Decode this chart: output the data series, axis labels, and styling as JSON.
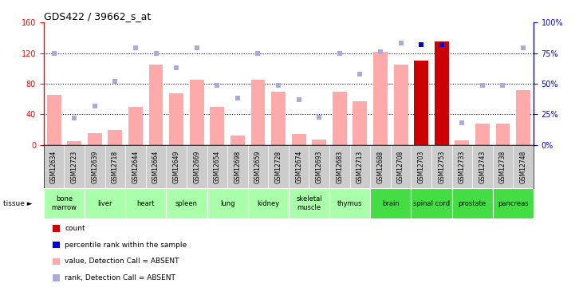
{
  "title": "GDS422 / 39662_s_at",
  "samples": [
    "GSM12634",
    "GSM12723",
    "GSM12639",
    "GSM12718",
    "GSM12644",
    "GSM12664",
    "GSM12649",
    "GSM12669",
    "GSM12654",
    "GSM12698",
    "GSM12659",
    "GSM12728",
    "GSM12674",
    "GSM12693",
    "GSM12683",
    "GSM12713",
    "GSM12688",
    "GSM12708",
    "GSM12703",
    "GSM12753",
    "GSM12733",
    "GSM12743",
    "GSM12738",
    "GSM12748"
  ],
  "tissues": [
    {
      "label": "bone\nmarrow",
      "samples": [
        "GSM12634",
        "GSM12723"
      ],
      "dark": false
    },
    {
      "label": "liver",
      "samples": [
        "GSM12639",
        "GSM12718"
      ],
      "dark": false
    },
    {
      "label": "heart",
      "samples": [
        "GSM12644",
        "GSM12664"
      ],
      "dark": false
    },
    {
      "label": "spleen",
      "samples": [
        "GSM12649",
        "GSM12669"
      ],
      "dark": false
    },
    {
      "label": "lung",
      "samples": [
        "GSM12654",
        "GSM12698"
      ],
      "dark": false
    },
    {
      "label": "kidney",
      "samples": [
        "GSM12659",
        "GSM12728"
      ],
      "dark": false
    },
    {
      "label": "skeletal\nmuscle",
      "samples": [
        "GSM12674",
        "GSM12693"
      ],
      "dark": false
    },
    {
      "label": "thymus",
      "samples": [
        "GSM12683",
        "GSM12713"
      ],
      "dark": false
    },
    {
      "label": "brain",
      "samples": [
        "GSM12688",
        "GSM12708"
      ],
      "dark": true
    },
    {
      "label": "spinal cord",
      "samples": [
        "GSM12703",
        "GSM12753"
      ],
      "dark": true
    },
    {
      "label": "prostate",
      "samples": [
        "GSM12733",
        "GSM12743"
      ],
      "dark": true
    },
    {
      "label": "pancreas",
      "samples": [
        "GSM12738",
        "GSM12748"
      ],
      "dark": true
    }
  ],
  "value_bars": [
    65,
    5,
    15,
    20,
    50,
    105,
    68,
    85,
    50,
    12,
    85,
    70,
    14,
    7,
    70,
    57,
    122,
    105,
    110,
    8,
    6,
    28,
    28,
    72
  ],
  "rank_bars": [
    75,
    22,
    32,
    52,
    79,
    75,
    63,
    79,
    49,
    38,
    75,
    49,
    37,
    23,
    75,
    58,
    76,
    83,
    82,
    82,
    18,
    49,
    49,
    79
  ],
  "count_bars": [
    null,
    null,
    null,
    null,
    null,
    null,
    null,
    null,
    null,
    null,
    null,
    null,
    null,
    null,
    null,
    null,
    null,
    null,
    110,
    135,
    null,
    null,
    null,
    null
  ],
  "percentile_bars": [
    null,
    null,
    null,
    null,
    null,
    null,
    null,
    null,
    null,
    null,
    null,
    null,
    null,
    null,
    null,
    null,
    null,
    null,
    82,
    82,
    null,
    null,
    null,
    null
  ],
  "count_bar_color": "#cc0000",
  "value_bar_color": "#ffaaaa",
  "rank_bar_color": "#aaaadd",
  "percentile_color": "#0000cc",
  "ylim_left": [
    0,
    160
  ],
  "ylim_right": [
    0,
    100
  ],
  "yticks_left": [
    0,
    40,
    80,
    120,
    160
  ],
  "yticks_right": [
    0,
    25,
    50,
    75,
    100
  ],
  "tissue_color_light": "#aaffaa",
  "tissue_color_dark": "#44dd44",
  "sample_bg": "#cccccc",
  "legend": [
    {
      "color": "#cc0000",
      "label": "count"
    },
    {
      "color": "#0000cc",
      "label": "percentile rank within the sample"
    },
    {
      "color": "#ffaaaa",
      "label": "value, Detection Call = ABSENT"
    },
    {
      "color": "#aaaadd",
      "label": "rank, Detection Call = ABSENT"
    }
  ]
}
